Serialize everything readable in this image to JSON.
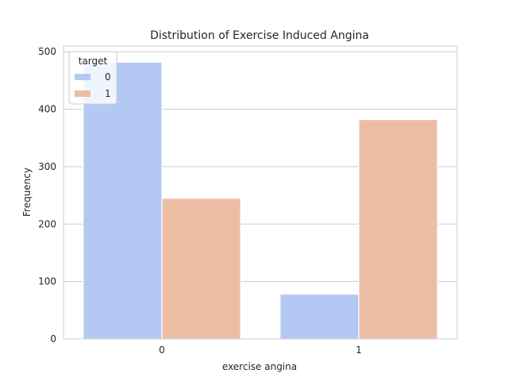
{
  "chart_data": {
    "type": "bar",
    "title": "Distribution of Exercise Induced Angina",
    "xlabel": "exercise angina",
    "ylabel": "Frequency",
    "categories": [
      "0",
      "1"
    ],
    "series": [
      {
        "name": "0",
        "values": [
          482,
          78
        ],
        "color": "#b3c9f4"
      },
      {
        "name": "1",
        "values": [
          245,
          382
        ],
        "color": "#ecbda5"
      }
    ],
    "ylim": [
      0,
      510
    ],
    "yticks": [
      0,
      100,
      200,
      300,
      400,
      500
    ],
    "grid": true,
    "legend": {
      "title": "target",
      "placement": "top-left"
    }
  }
}
